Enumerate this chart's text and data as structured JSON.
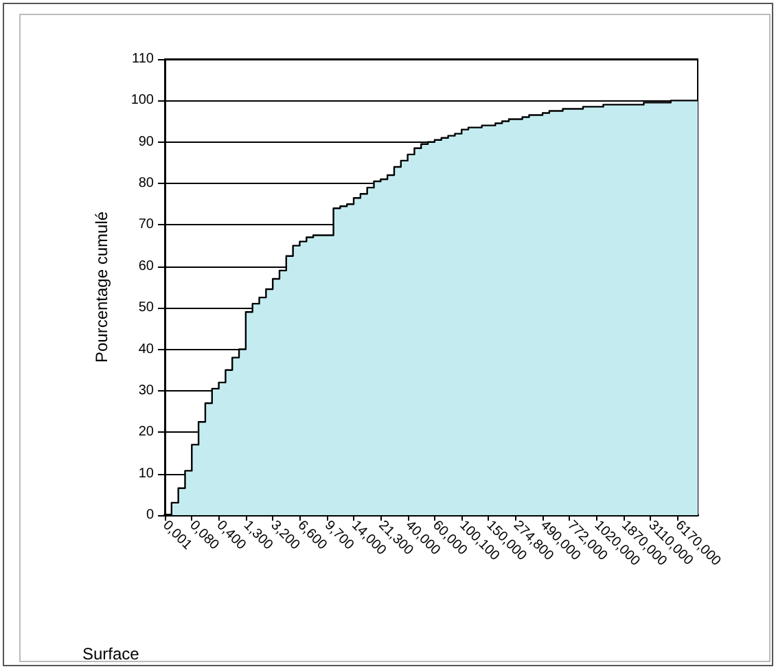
{
  "chart_data": {
    "type": "area",
    "xlabel": "Surface",
    "ylabel": "Pourcentage cumulé",
    "categories": [
      "0,001",
      null,
      null,
      null,
      "0,080",
      null,
      null,
      null,
      "0,400",
      null,
      null,
      null,
      "1,300",
      null,
      null,
      null,
      "3,200",
      null,
      null,
      null,
      "6,600",
      null,
      null,
      null,
      "9,700",
      null,
      null,
      null,
      "14,000",
      null,
      null,
      null,
      "21,300",
      null,
      null,
      null,
      "40,000",
      null,
      null,
      null,
      "60,000",
      null,
      null,
      null,
      "100,100",
      null,
      null,
      null,
      "150,000",
      null,
      null,
      null,
      "274,800",
      null,
      null,
      null,
      "490,000",
      null,
      null,
      null,
      "772,000",
      null,
      null,
      null,
      "1020,000",
      null,
      null,
      null,
      "1870,000",
      null,
      null,
      null,
      "3110,000",
      null,
      null,
      null,
      "6170,000",
      null,
      null,
      null
    ],
    "series": [
      {
        "color": "#c4ecf0",
        "values": [
          0,
          3,
          6.5,
          10.7,
          17,
          22.5,
          27,
          30.5,
          32,
          35,
          38,
          40,
          49,
          51,
          52.5,
          54.5,
          57,
          59,
          62.5,
          65,
          66,
          67,
          67.5,
          67.5,
          67.5,
          74,
          74.5,
          75,
          76.5,
          77.5,
          79,
          80.5,
          81,
          82,
          84,
          85.5,
          87,
          88.5,
          89.5,
          90,
          90.5,
          91,
          91.5,
          92,
          93,
          93.5,
          93.5,
          94,
          94,
          94.5,
          95,
          95.5,
          95.5,
          96,
          96.5,
          96.5,
          97,
          97.5,
          97.5,
          98,
          98,
          98,
          98.5,
          98.5,
          98.5,
          99,
          99,
          99,
          99,
          99,
          99,
          99.5,
          99.5,
          99.5,
          99.5,
          100,
          100,
          100,
          100,
          100
        ]
      }
    ],
    "ylim": [
      0,
      110
    ],
    "yticks": [
      0,
      10,
      20,
      30,
      40,
      50,
      60,
      70,
      80,
      90,
      100,
      110
    ],
    "grid": "y"
  }
}
